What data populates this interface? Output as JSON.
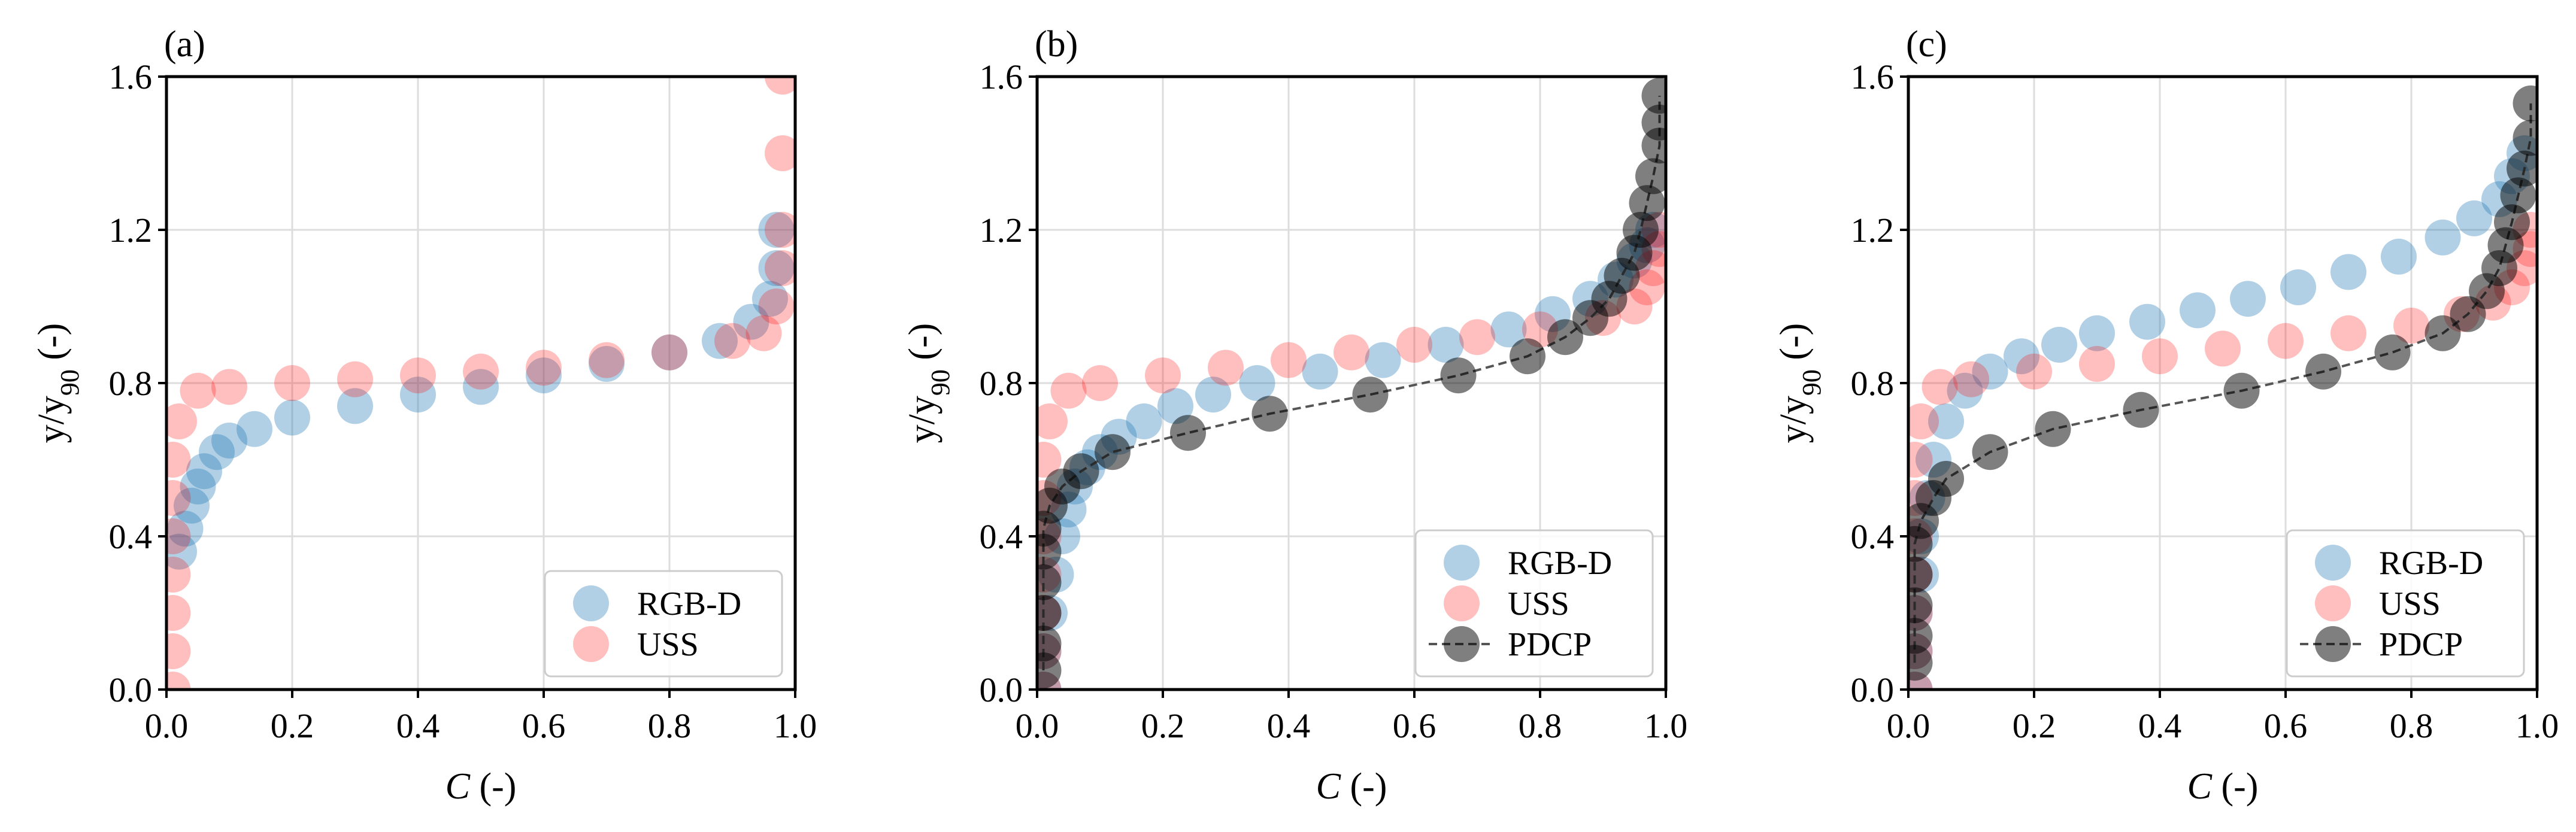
{
  "chart_data": [
    {
      "type": "scatter",
      "panel_label": "(a)",
      "xlabel_symbol": "C",
      "xlabel_unit": " (-)",
      "ylabel": "y/y90 (-)",
      "ylabel_base": "y/y",
      "ylabel_sub": "90",
      "ylabel_unit": " (-)",
      "xlim": [
        0,
        1
      ],
      "ylim": [
        0,
        1.6
      ],
      "xticks": [
        "0.0",
        "0.2",
        "0.4",
        "0.6",
        "0.8",
        "1.0"
      ],
      "yticks": [
        "0.0",
        "0.4",
        "0.8",
        "1.2",
        "1.6"
      ],
      "grid": true,
      "legend_position": "bottom-right",
      "series": [
        {
          "name": "RGB-D",
          "color": "#1f77b4",
          "alpha": 0.35,
          "marker": "circle",
          "x": [
            0.02,
            0.03,
            0.04,
            0.05,
            0.06,
            0.08,
            0.1,
            0.14,
            0.2,
            0.3,
            0.4,
            0.5,
            0.6,
            0.7,
            0.8,
            0.88,
            0.93,
            0.96,
            0.97,
            0.97
          ],
          "y": [
            0.36,
            0.42,
            0.48,
            0.53,
            0.57,
            0.62,
            0.65,
            0.68,
            0.71,
            0.74,
            0.77,
            0.79,
            0.82,
            0.85,
            0.88,
            0.91,
            0.96,
            1.02,
            1.1,
            1.2
          ]
        },
        {
          "name": "USS",
          "color": "#ff0000",
          "alpha": 0.25,
          "marker": "circle",
          "x": [
            0.01,
            0.01,
            0.01,
            0.01,
            0.01,
            0.01,
            0.01,
            0.02,
            0.05,
            0.1,
            0.2,
            0.3,
            0.4,
            0.5,
            0.6,
            0.7,
            0.8,
            0.9,
            0.95,
            0.97,
            0.98,
            0.98,
            0.98,
            0.98
          ],
          "y": [
            0.0,
            0.1,
            0.2,
            0.3,
            0.4,
            0.5,
            0.6,
            0.7,
            0.78,
            0.79,
            0.8,
            0.81,
            0.82,
            0.83,
            0.84,
            0.86,
            0.88,
            0.91,
            0.93,
            1.0,
            1.1,
            1.2,
            1.4,
            1.6
          ]
        }
      ]
    },
    {
      "type": "scatter",
      "panel_label": "(b)",
      "xlabel_symbol": "C",
      "xlabel_unit": " (-)",
      "ylabel": "y/y90 (-)",
      "ylabel_base": "y/y",
      "ylabel_sub": "90",
      "ylabel_unit": " (-)",
      "xlim": [
        0,
        1
      ],
      "ylim": [
        0,
        1.6
      ],
      "xticks": [
        "0.0",
        "0.2",
        "0.4",
        "0.6",
        "0.8",
        "1.0"
      ],
      "yticks": [
        "0.0",
        "0.4",
        "0.8",
        "1.2",
        "1.6"
      ],
      "grid": true,
      "legend_position": "bottom-right",
      "series": [
        {
          "name": "RGB-D",
          "color": "#1f77b4",
          "alpha": 0.35,
          "marker": "circle",
          "x": [
            0.01,
            0.01,
            0.02,
            0.03,
            0.04,
            0.05,
            0.06,
            0.08,
            0.1,
            0.13,
            0.17,
            0.22,
            0.28,
            0.35,
            0.45,
            0.55,
            0.65,
            0.75,
            0.82,
            0.88,
            0.92,
            0.95,
            0.97,
            0.98
          ],
          "y": [
            0.0,
            0.1,
            0.2,
            0.3,
            0.4,
            0.47,
            0.53,
            0.58,
            0.62,
            0.66,
            0.7,
            0.74,
            0.77,
            0.8,
            0.83,
            0.86,
            0.9,
            0.94,
            0.98,
            1.02,
            1.07,
            1.12,
            1.16,
            1.2
          ]
        },
        {
          "name": "USS",
          "color": "#ff0000",
          "alpha": 0.25,
          "marker": "circle",
          "x": [
            0.01,
            0.01,
            0.01,
            0.01,
            0.01,
            0.01,
            0.01,
            0.02,
            0.05,
            0.1,
            0.2,
            0.3,
            0.4,
            0.5,
            0.6,
            0.7,
            0.8,
            0.9,
            0.95,
            0.97,
            0.98,
            0.99,
            0.99
          ],
          "y": [
            0.0,
            0.1,
            0.2,
            0.3,
            0.4,
            0.5,
            0.6,
            0.7,
            0.78,
            0.8,
            0.82,
            0.84,
            0.86,
            0.88,
            0.9,
            0.92,
            0.94,
            0.97,
            1.0,
            1.05,
            1.1,
            1.15,
            1.2
          ]
        },
        {
          "name": "PDCP",
          "color": "#000000",
          "alpha": 0.5,
          "marker": "circle",
          "line": "dashed",
          "x": [
            0.01,
            0.01,
            0.01,
            0.01,
            0.01,
            0.01,
            0.02,
            0.04,
            0.07,
            0.12,
            0.24,
            0.37,
            0.53,
            0.67,
            0.78,
            0.84,
            0.88,
            0.91,
            0.93,
            0.95,
            0.96,
            0.97,
            0.98,
            0.99,
            0.99,
            0.99
          ],
          "y": [
            0.05,
            0.12,
            0.2,
            0.28,
            0.36,
            0.42,
            0.48,
            0.53,
            0.57,
            0.62,
            0.67,
            0.72,
            0.77,
            0.82,
            0.87,
            0.92,
            0.97,
            1.02,
            1.08,
            1.14,
            1.2,
            1.27,
            1.34,
            1.42,
            1.48,
            1.55
          ]
        }
      ]
    },
    {
      "type": "scatter",
      "panel_label": "(c)",
      "xlabel_symbol": "C",
      "xlabel_unit": " (-)",
      "ylabel": "y/y90 (-)",
      "ylabel_base": "y/y",
      "ylabel_sub": "90",
      "ylabel_unit": " (-)",
      "xlim": [
        0,
        1
      ],
      "ylim": [
        0,
        1.6
      ],
      "xticks": [
        "0.0",
        "0.2",
        "0.4",
        "0.6",
        "0.8",
        "1.0"
      ],
      "yticks": [
        "0.0",
        "0.4",
        "0.8",
        "1.2",
        "1.6"
      ],
      "grid": true,
      "legend_position": "bottom-right",
      "series": [
        {
          "name": "RGB-D",
          "color": "#1f77b4",
          "alpha": 0.35,
          "marker": "circle",
          "x": [
            0.01,
            0.01,
            0.01,
            0.02,
            0.02,
            0.03,
            0.04,
            0.06,
            0.09,
            0.13,
            0.18,
            0.24,
            0.3,
            0.38,
            0.46,
            0.54,
            0.62,
            0.7,
            0.78,
            0.85,
            0.9,
            0.94,
            0.96,
            0.98
          ],
          "y": [
            0.0,
            0.1,
            0.2,
            0.3,
            0.4,
            0.5,
            0.6,
            0.7,
            0.78,
            0.83,
            0.87,
            0.9,
            0.93,
            0.96,
            0.99,
            1.02,
            1.05,
            1.09,
            1.13,
            1.18,
            1.23,
            1.28,
            1.34,
            1.4
          ]
        },
        {
          "name": "USS",
          "color": "#ff0000",
          "alpha": 0.25,
          "marker": "circle",
          "x": [
            0.01,
            0.01,
            0.01,
            0.01,
            0.01,
            0.01,
            0.01,
            0.02,
            0.05,
            0.1,
            0.2,
            0.3,
            0.4,
            0.5,
            0.6,
            0.7,
            0.8,
            0.88,
            0.93,
            0.96,
            0.98,
            0.99,
            0.99
          ],
          "y": [
            0.0,
            0.1,
            0.2,
            0.3,
            0.4,
            0.5,
            0.6,
            0.7,
            0.79,
            0.81,
            0.83,
            0.85,
            0.87,
            0.89,
            0.91,
            0.93,
            0.95,
            0.98,
            1.01,
            1.05,
            1.1,
            1.15,
            1.2
          ]
        },
        {
          "name": "PDCP",
          "color": "#000000",
          "alpha": 0.5,
          "marker": "circle",
          "line": "dashed",
          "x": [
            0.01,
            0.01,
            0.01,
            0.01,
            0.01,
            0.02,
            0.04,
            0.06,
            0.13,
            0.23,
            0.37,
            0.53,
            0.66,
            0.77,
            0.85,
            0.89,
            0.92,
            0.94,
            0.95,
            0.96,
            0.97,
            0.98,
            0.99,
            0.99
          ],
          "y": [
            0.07,
            0.14,
            0.22,
            0.3,
            0.38,
            0.44,
            0.5,
            0.55,
            0.62,
            0.68,
            0.73,
            0.78,
            0.83,
            0.88,
            0.93,
            0.98,
            1.04,
            1.1,
            1.16,
            1.22,
            1.29,
            1.36,
            1.44,
            1.53
          ]
        }
      ]
    }
  ]
}
